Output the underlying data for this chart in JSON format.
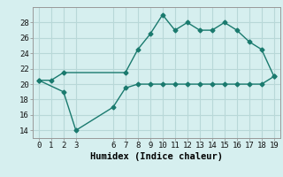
{
  "line1_x": [
    0,
    1,
    2,
    7,
    8,
    9,
    10,
    11,
    12,
    13,
    14,
    15,
    16,
    17,
    18,
    19
  ],
  "line1_y": [
    20.5,
    20.5,
    21.5,
    21.5,
    24.5,
    26.5,
    29.0,
    27.0,
    28.0,
    27.0,
    27.0,
    28.0,
    27.0,
    25.5,
    24.5,
    21.0
  ],
  "line2_x": [
    0,
    2,
    3,
    6,
    7,
    8,
    9,
    10,
    11,
    12,
    13,
    14,
    15,
    16,
    17,
    18,
    19
  ],
  "line2_y": [
    20.5,
    19.0,
    14.0,
    17.0,
    19.5,
    20.0,
    20.0,
    20.0,
    20.0,
    20.0,
    20.0,
    20.0,
    20.0,
    20.0,
    20.0,
    20.0,
    21.0
  ],
  "line_color": "#1a7a6e",
  "bg_color": "#d6efef",
  "grid_color": "#b8d8d8",
  "xlabel": "Humidex (Indice chaleur)",
  "xlim": [
    -0.5,
    19.5
  ],
  "ylim": [
    13.0,
    30.0
  ],
  "yticks": [
    14,
    16,
    18,
    20,
    22,
    24,
    26,
    28
  ],
  "xticks": [
    0,
    1,
    2,
    3,
    6,
    7,
    8,
    9,
    10,
    11,
    12,
    13,
    14,
    15,
    16,
    17,
    18,
    19
  ],
  "tick_fontsize": 6.5,
  "xlabel_fontsize": 7.5
}
